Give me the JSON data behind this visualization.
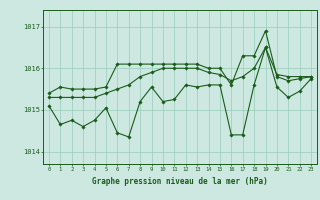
{
  "title": "Graphe pression niveau de la mer (hPa)",
  "x_labels": [
    "0",
    "1",
    "2",
    "3",
    "4",
    "5",
    "6",
    "7",
    "8",
    "9",
    "10",
    "11",
    "12",
    "13",
    "14",
    "15",
    "16",
    "17",
    "18",
    "19",
    "20",
    "21",
    "22",
    "23"
  ],
  "xlim": [
    -0.5,
    23.5
  ],
  "ylim": [
    1013.7,
    1017.4
  ],
  "yticks": [
    1014,
    1015,
    1016,
    1017
  ],
  "background_color": "#cce8e0",
  "grid_color": "#99ccbb",
  "line_color": "#1a5c1a",
  "series_high": [
    1015.4,
    1015.55,
    1015.5,
    1015.5,
    1015.5,
    1015.55,
    1016.1,
    1016.1,
    1016.1,
    1016.1,
    1016.1,
    1016.1,
    1016.1,
    1016.1,
    1016.0,
    1016.0,
    1015.6,
    1016.3,
    1016.3,
    1016.9,
    1015.8,
    1015.7,
    1015.75,
    1015.8
  ],
  "series_mid": [
    1015.3,
    1015.3,
    1015.3,
    1015.3,
    1015.3,
    1015.4,
    1015.5,
    1015.6,
    1015.8,
    1015.9,
    1016.0,
    1016.0,
    1016.0,
    1016.0,
    1015.9,
    1015.85,
    1015.7,
    1015.8,
    1016.0,
    1016.5,
    1015.85,
    1015.8,
    1015.8,
    1015.8
  ],
  "series_low": [
    1015.1,
    1014.65,
    1014.75,
    1014.6,
    1014.75,
    1015.05,
    1014.45,
    1014.35,
    1015.2,
    1015.55,
    1015.2,
    1015.25,
    1015.6,
    1015.55,
    1015.6,
    1015.6,
    1014.4,
    1014.4,
    1015.6,
    1016.5,
    1015.55,
    1015.3,
    1015.45,
    1015.75
  ]
}
